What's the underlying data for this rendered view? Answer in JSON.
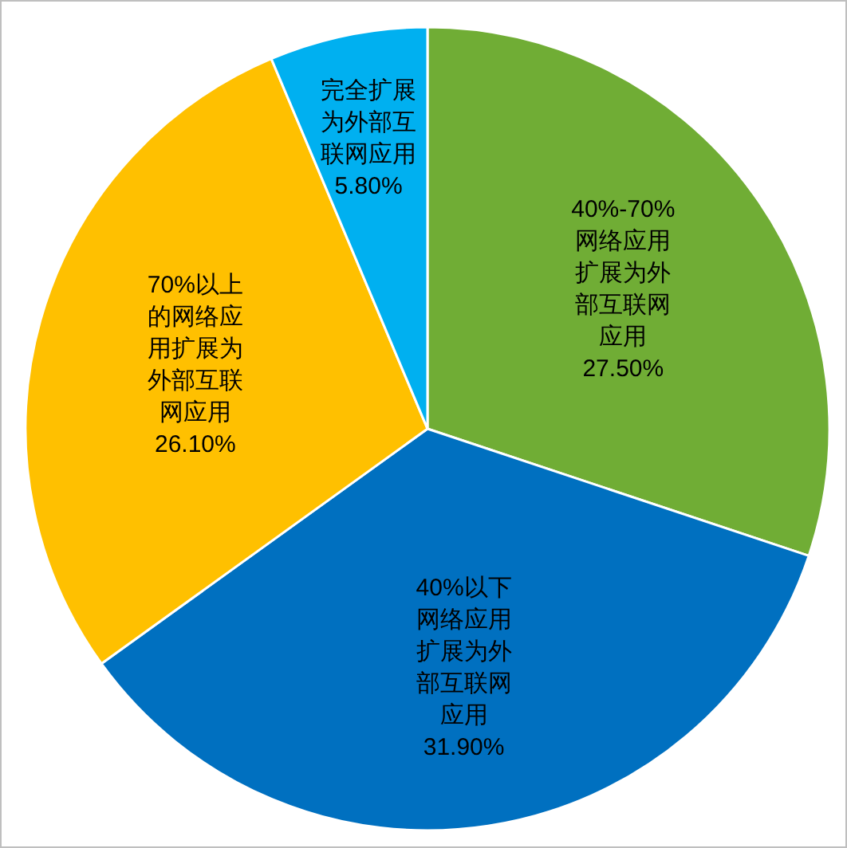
{
  "chart_data": {
    "type": "pie",
    "categories": [
      "40%-70%网络应用扩展为外部互联网应用",
      "40%以下网络应用扩展为外部互联网应用",
      "70%以上的网络应用扩展为外部互联网应用",
      "完全扩展为外部互联网应用"
    ],
    "values": [
      27.5,
      31.9,
      26.1,
      5.8
    ],
    "value_labels": [
      "27.50%",
      "31.90%",
      "26.10%",
      "5.80%"
    ],
    "colors": [
      "#70ad35",
      "#0070c0",
      "#ffc000",
      "#00b0f0"
    ]
  }
}
